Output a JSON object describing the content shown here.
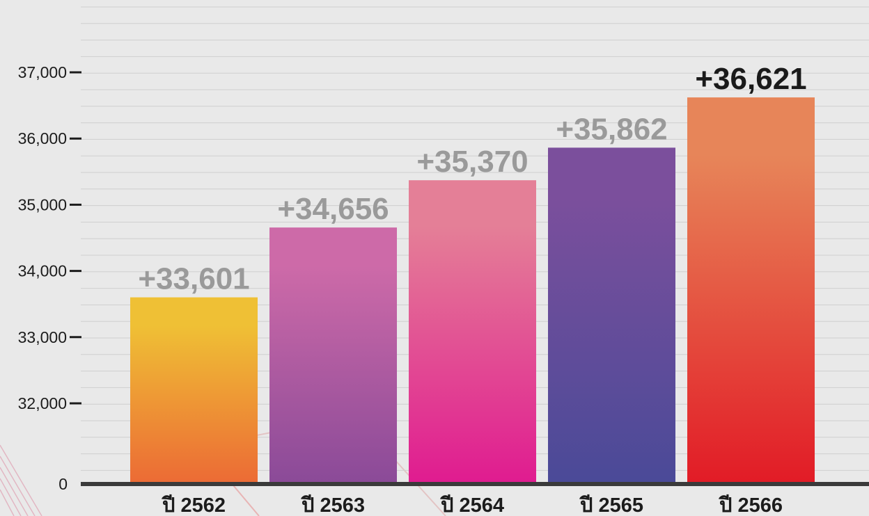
{
  "chart_data": {
    "type": "bar",
    "title": "",
    "xlabel": "",
    "ylabel": "",
    "categories": [
      "ปี 2562",
      "ปี 2563",
      "ปี 2564",
      "ปี 2565",
      "ปี 2566"
    ],
    "values": [
      33601,
      34656,
      35370,
      35862,
      36621
    ],
    "data_labels": [
      "+33,601",
      "+34,656",
      "+35,370",
      "+35,862",
      "+36,621"
    ],
    "y_ticks": [
      {
        "value": 0,
        "label": "0"
      },
      {
        "value": 32000,
        "label": "32,000"
      },
      {
        "value": 33000,
        "label": "33,000"
      },
      {
        "value": 34000,
        "label": "34,000"
      },
      {
        "value": 35000,
        "label": "35,000"
      },
      {
        "value": 36000,
        "label": "36,000"
      },
      {
        "value": 37000,
        "label": "37,000"
      }
    ],
    "ylim": [
      31000,
      37000
    ],
    "axis_break": "0 at baseline, scale broken below 32,000",
    "grid": true,
    "legend": "none",
    "colors": {
      "background": "#e9e9e9",
      "gridline": "#cfcfcf",
      "axis": "#3a3a3a",
      "label_muted": "#9a9a9a",
      "label_highlight": "#1a1a1a",
      "bars": [
        {
          "top": "#efc035",
          "bottom": "#ec6a35"
        },
        {
          "top": "#cd6aa8",
          "bottom": "#8a4a98"
        },
        {
          "top": "#e47f97",
          "bottom": "#e01b90"
        },
        {
          "top": "#7b4f9c",
          "bottom": "#4a4a98"
        },
        {
          "top": "#e78559",
          "bottom": "#e21b26"
        }
      ]
    }
  }
}
